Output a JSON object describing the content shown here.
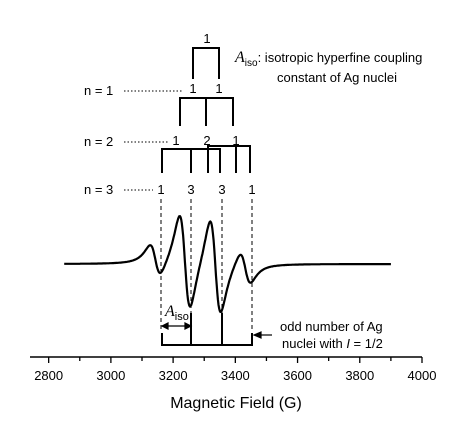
{
  "chart_data": {
    "type": "line",
    "xlabel": "Magnetic Field (G)",
    "ylabel": "",
    "xlim": [
      2740,
      4000
    ],
    "x_ticks": [
      2800,
      3000,
      3200,
      3400,
      3600,
      3800,
      4000
    ],
    "x_tick_labels": [
      "2800",
      "3000",
      "3200",
      "3400",
      "3600",
      "3800",
      "4000"
    ],
    "grid": false,
    "series": [
      {
        "curve": "derivative EPR spectrum",
        "x_range": [
          2850,
          3900
        ],
        "line_positions": [
          3143,
          3238,
          3336,
          3432
        ],
        "relative_intensities": [
          1,
          3,
          3,
          1
        ]
      }
    ],
    "splitting_levels": [
      {
        "label": "",
        "positions": [
          3205,
          3285
        ],
        "intensities": [
          "1"
        ]
      },
      {
        "label": "n = 1",
        "positions": [
          3180,
          3290,
          3380
        ],
        "intensities": [
          "1",
          "1"
        ]
      },
      {
        "label": "n = 2",
        "positions": [
          3143,
          3238,
          3336,
          3432
        ],
        "intensities": [
          "1",
          "2",
          "1"
        ]
      },
      {
        "label": "n = 3",
        "positions": [
          3143,
          3238,
          3336,
          3432
        ],
        "intensities": [
          "1",
          "3",
          "3",
          "1"
        ]
      }
    ],
    "annotations": {
      "aiso_symbol": "A",
      "aiso_subscript": "iso",
      "aiso_line1": ": isotropic hyperfine coupling",
      "aiso_line2": "constant of Ag nuclei",
      "aiso_bottom_subscript": "iso",
      "odd_line1": "odd number of Ag",
      "odd_line2_prefix": "nuclei with ",
      "odd_line2_italic": "I",
      "odd_line2_suffix": " = 1/2"
    }
  }
}
